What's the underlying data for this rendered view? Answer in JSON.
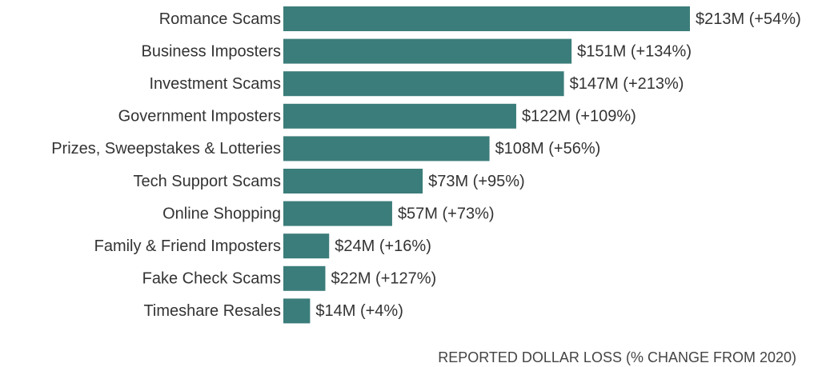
{
  "chart_data": {
    "type": "bar",
    "orientation": "horizontal",
    "x_label": "REPORTED DOLLAR LOSS (% CHANGE FROM 2020)",
    "categories": [
      "Romance Scams",
      "Business Imposters",
      "Investment Scams",
      "Government Imposters",
      "Prizes, Sweepstakes & Lotteries",
      "Tech Support Scams",
      "Online Shopping",
      "Family & Friend Imposters",
      "Fake Check Scams",
      "Timeshare Resales"
    ],
    "values": [
      213,
      151,
      147,
      122,
      108,
      73,
      57,
      24,
      22,
      14
    ],
    "value_labels": [
      "$213M (+54%)",
      "$151M (+134%)",
      "$147M (+213%)",
      "$122M (+109%)",
      "$108M (+56%)",
      "$73M (+95%)",
      "$57M (+73%)",
      "$24M (+16%)",
      "$22M (+127%)",
      "$14M (+4%)"
    ],
    "color": "#3b7d7a"
  }
}
